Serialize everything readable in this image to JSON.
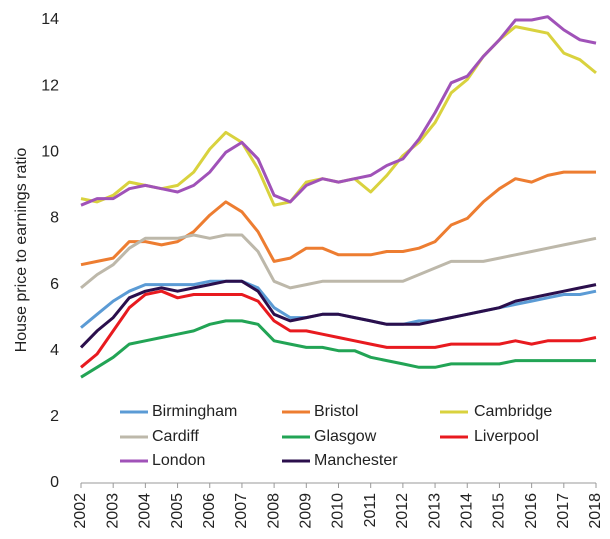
{
  "chart_data": {
    "type": "line",
    "ylabel": "House price to earnings ratio",
    "x": [
      2002,
      2002.5,
      2003,
      2003.5,
      2004,
      2004.5,
      2005,
      2005.5,
      2006,
      2006.5,
      2007,
      2007.5,
      2008,
      2008.5,
      2009,
      2009.5,
      2010,
      2010.5,
      2011,
      2011.5,
      2012,
      2012.5,
      2013,
      2013.5,
      2014,
      2014.5,
      2015,
      2015.5,
      2016,
      2016.5,
      2017,
      2017.5,
      2018
    ],
    "xlim": [
      2002,
      2018
    ],
    "xticks": [
      2002,
      2003,
      2004,
      2005,
      2006,
      2007,
      2008,
      2009,
      2010,
      2011,
      2012,
      2013,
      2014,
      2015,
      2016,
      2017,
      2018
    ],
    "ylim": [
      0,
      14
    ],
    "yticks": [
      0,
      2,
      4,
      6,
      8,
      10,
      12,
      14
    ],
    "grid": false,
    "legend": "bottom",
    "series": [
      {
        "name": "Birmingham",
        "color": "#5b9bd5",
        "values": [
          4.7,
          5.1,
          5.5,
          5.8,
          6.0,
          6.0,
          6.0,
          6.0,
          6.1,
          6.1,
          6.1,
          5.9,
          5.3,
          5.0,
          5.0,
          5.1,
          5.1,
          5.0,
          4.9,
          4.8,
          4.8,
          4.9,
          4.9,
          5.0,
          5.1,
          5.2,
          5.3,
          5.4,
          5.5,
          5.6,
          5.7,
          5.7,
          5.8
        ]
      },
      {
        "name": "Bristol",
        "color": "#ed7d31",
        "values": [
          6.6,
          6.7,
          6.8,
          7.3,
          7.3,
          7.2,
          7.3,
          7.6,
          8.1,
          8.5,
          8.2,
          7.6,
          6.7,
          6.8,
          7.1,
          7.1,
          6.9,
          6.9,
          6.9,
          7.0,
          7.0,
          7.1,
          7.3,
          7.8,
          8.0,
          8.5,
          8.9,
          9.2,
          9.1,
          9.3,
          9.4,
          9.4,
          9.4
        ]
      },
      {
        "name": "Cambridge",
        "color": "#d9d23e",
        "values": [
          8.6,
          8.5,
          8.7,
          9.1,
          9.0,
          8.9,
          9.0,
          9.4,
          10.1,
          10.6,
          10.3,
          9.5,
          8.4,
          8.5,
          9.1,
          9.2,
          9.1,
          9.2,
          8.8,
          9.3,
          9.9,
          10.3,
          10.9,
          11.8,
          12.2,
          12.9,
          13.4,
          13.8,
          13.7,
          13.6,
          13.0,
          12.8,
          12.4
        ]
      },
      {
        "name": "Cardiff",
        "color": "#bdb8aa",
        "values": [
          5.9,
          6.3,
          6.6,
          7.1,
          7.4,
          7.4,
          7.4,
          7.5,
          7.4,
          7.5,
          7.5,
          7.0,
          6.1,
          5.9,
          6.0,
          6.1,
          6.1,
          6.1,
          6.1,
          6.1,
          6.1,
          6.3,
          6.5,
          6.7,
          6.7,
          6.7,
          6.8,
          6.9,
          7.0,
          7.1,
          7.2,
          7.3,
          7.4
        ]
      },
      {
        "name": "Glasgow",
        "color": "#22a455",
        "values": [
          3.2,
          3.5,
          3.8,
          4.2,
          4.3,
          4.4,
          4.5,
          4.6,
          4.8,
          4.9,
          4.9,
          4.8,
          4.3,
          4.2,
          4.1,
          4.1,
          4.0,
          4.0,
          3.8,
          3.7,
          3.6,
          3.5,
          3.5,
          3.6,
          3.6,
          3.6,
          3.6,
          3.7,
          3.7,
          3.7,
          3.7,
          3.7,
          3.7
        ]
      },
      {
        "name": "Liverpool",
        "color": "#e81a1f",
        "values": [
          3.5,
          3.9,
          4.6,
          5.3,
          5.7,
          5.8,
          5.6,
          5.7,
          5.7,
          5.7,
          5.7,
          5.5,
          4.9,
          4.6,
          4.6,
          4.5,
          4.4,
          4.3,
          4.2,
          4.1,
          4.1,
          4.1,
          4.1,
          4.2,
          4.2,
          4.2,
          4.2,
          4.3,
          4.2,
          4.3,
          4.3,
          4.3,
          4.4
        ]
      },
      {
        "name": "London",
        "color": "#a052b8",
        "values": [
          8.4,
          8.6,
          8.6,
          8.9,
          9.0,
          8.9,
          8.8,
          9.0,
          9.4,
          10.0,
          10.3,
          9.8,
          8.7,
          8.5,
          9.0,
          9.2,
          9.1,
          9.2,
          9.3,
          9.6,
          9.8,
          10.4,
          11.2,
          12.1,
          12.3,
          12.9,
          13.4,
          14.0,
          14.0,
          14.1,
          13.7,
          13.4,
          13.3
        ]
      },
      {
        "name": "Manchester",
        "color": "#2b0f4c",
        "values": [
          4.1,
          4.6,
          5.0,
          5.6,
          5.8,
          5.9,
          5.8,
          5.9,
          6.0,
          6.1,
          6.1,
          5.8,
          5.1,
          4.9,
          5.0,
          5.1,
          5.1,
          5.0,
          4.9,
          4.8,
          4.8,
          4.8,
          4.9,
          5.0,
          5.1,
          5.2,
          5.3,
          5.5,
          5.6,
          5.7,
          5.8,
          5.9,
          6.0
        ]
      }
    ]
  }
}
